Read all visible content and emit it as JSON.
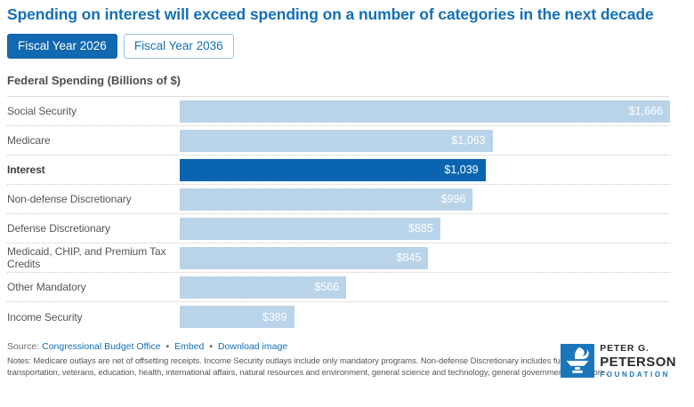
{
  "title": "Spending on interest will exceed spending on a number of categories in the next decade",
  "tabs": [
    {
      "label": "Fiscal Year 2026",
      "active": true
    },
    {
      "label": "Fiscal Year 2036",
      "active": false
    }
  ],
  "chart_data": {
    "type": "bar",
    "orientation": "horizontal",
    "title": "Federal Spending (Billions of $)",
    "categories": [
      "Social Security",
      "Medicare",
      "Interest",
      "Non-defense Discretionary",
      "Defense Discretionary",
      "Medicaid, CHIP, and Premium Tax Credits",
      "Other Mandatory",
      "Income Security"
    ],
    "values": [
      1666,
      1063,
      1039,
      996,
      885,
      845,
      566,
      389
    ],
    "value_labels": [
      "$1,666",
      "$1,063",
      "$1,039",
      "$996",
      "$885",
      "$845",
      "$566",
      "$389"
    ],
    "highlight_category": "Interest",
    "xlim": [
      0,
      1666
    ],
    "grid": false,
    "legend": false,
    "bar_color": "#B9D3E9",
    "highlight_color": "#0A64AF",
    "value_label_color": "#FFFFFF"
  },
  "footer": {
    "source_label": "Source:",
    "source_link": "Congressional Budget Office",
    "separator": "•",
    "embed_link": "Embed",
    "download_link": "Download image",
    "notes": "Notes: Medicare outlays are net of offsetting receipts. Income Security outlays include only mandatory programs. Non-defense Discretionary includes funding for transportation, veterans, education, health, international affairs, natural resources and environment, general science and technology, general government, and more."
  },
  "logo": {
    "line1": "PETER G.",
    "line2": "PETERSON",
    "line3": "FOUNDATION",
    "accent_color": "#1B75BB"
  }
}
